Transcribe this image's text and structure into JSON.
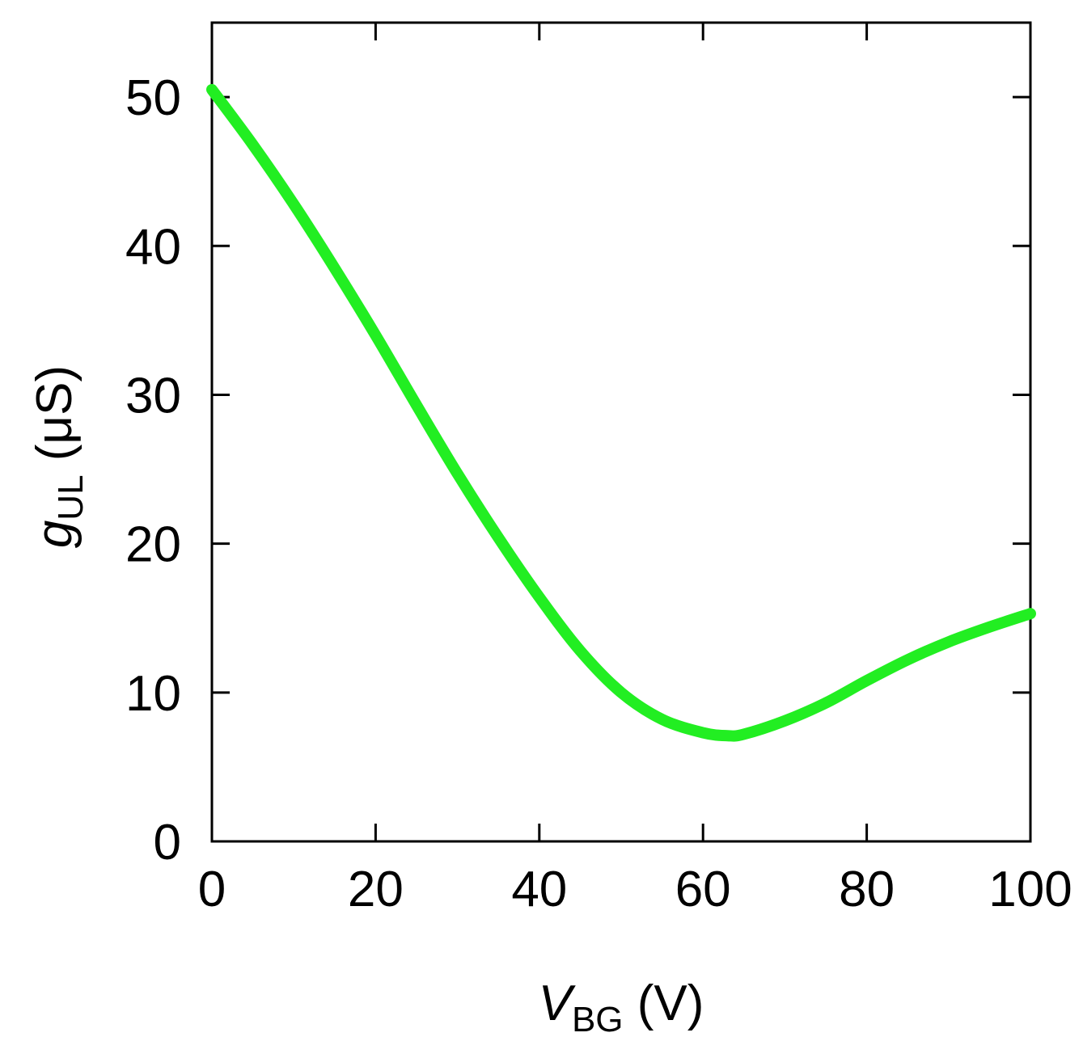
{
  "chart_data": {
    "type": "line",
    "title": "",
    "xlabel": {
      "main": "V",
      "sub": "BG",
      "unit": " (V)"
    },
    "ylabel": {
      "main": "g",
      "sub": "UL",
      "unit": " (μS)"
    },
    "xlim": [
      0,
      100
    ],
    "ylim": [
      0,
      55
    ],
    "xticks": [
      0,
      20,
      40,
      60,
      80,
      100
    ],
    "yticks": [
      0,
      10,
      20,
      30,
      40,
      50
    ],
    "xtick_labels": [
      "0",
      "20",
      "40",
      "60",
      "80",
      "100"
    ],
    "ytick_labels": [
      "0",
      "10",
      "20",
      "30",
      "40",
      "50"
    ],
    "grid": false,
    "legend": "none",
    "series": [
      {
        "color": "#22ee22",
        "x": [
          0,
          5,
          10,
          15,
          20,
          25,
          30,
          35,
          40,
          45,
          50,
          55,
          60,
          63,
          65,
          70,
          75,
          80,
          85,
          90,
          95,
          100
        ],
        "y": [
          50.5,
          46.8,
          42.8,
          38.5,
          34.0,
          29.3,
          24.7,
          20.4,
          16.4,
          12.8,
          10.0,
          8.2,
          7.3,
          7.1,
          7.2,
          8.1,
          9.3,
          10.8,
          12.2,
          13.4,
          14.4,
          15.3
        ]
      }
    ]
  }
}
